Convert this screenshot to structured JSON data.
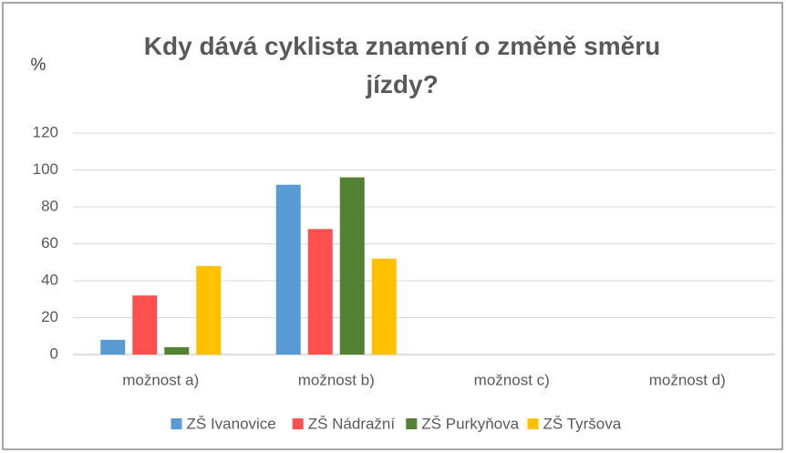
{
  "chart_data": {
    "type": "bar",
    "title": "Kdy dává cyklista znamení o změně směru jízdy?",
    "y_label": "%",
    "categories": [
      "možnost a)",
      "možnost b)",
      "možnost c)",
      "možnost d)"
    ],
    "series": [
      {
        "name": "ZŠ Ivanovice",
        "color": "#5b9bd5",
        "values": [
          8,
          92,
          0,
          0
        ]
      },
      {
        "name": "ZŠ Nádražní",
        "color": "#ff5050",
        "values": [
          32,
          68,
          0,
          0
        ]
      },
      {
        "name": "ZŠ Purkyňova",
        "color": "#548235",
        "values": [
          4,
          96,
          0,
          0
        ]
      },
      {
        "name": "ZŠ Tyršova",
        "color": "#ffc000",
        "values": [
          48,
          52,
          0,
          0
        ]
      }
    ],
    "ylim": [
      0,
      120
    ],
    "yticks": [
      0,
      20,
      40,
      60,
      80,
      100,
      120
    ],
    "grid": true,
    "legend": "bottom"
  }
}
